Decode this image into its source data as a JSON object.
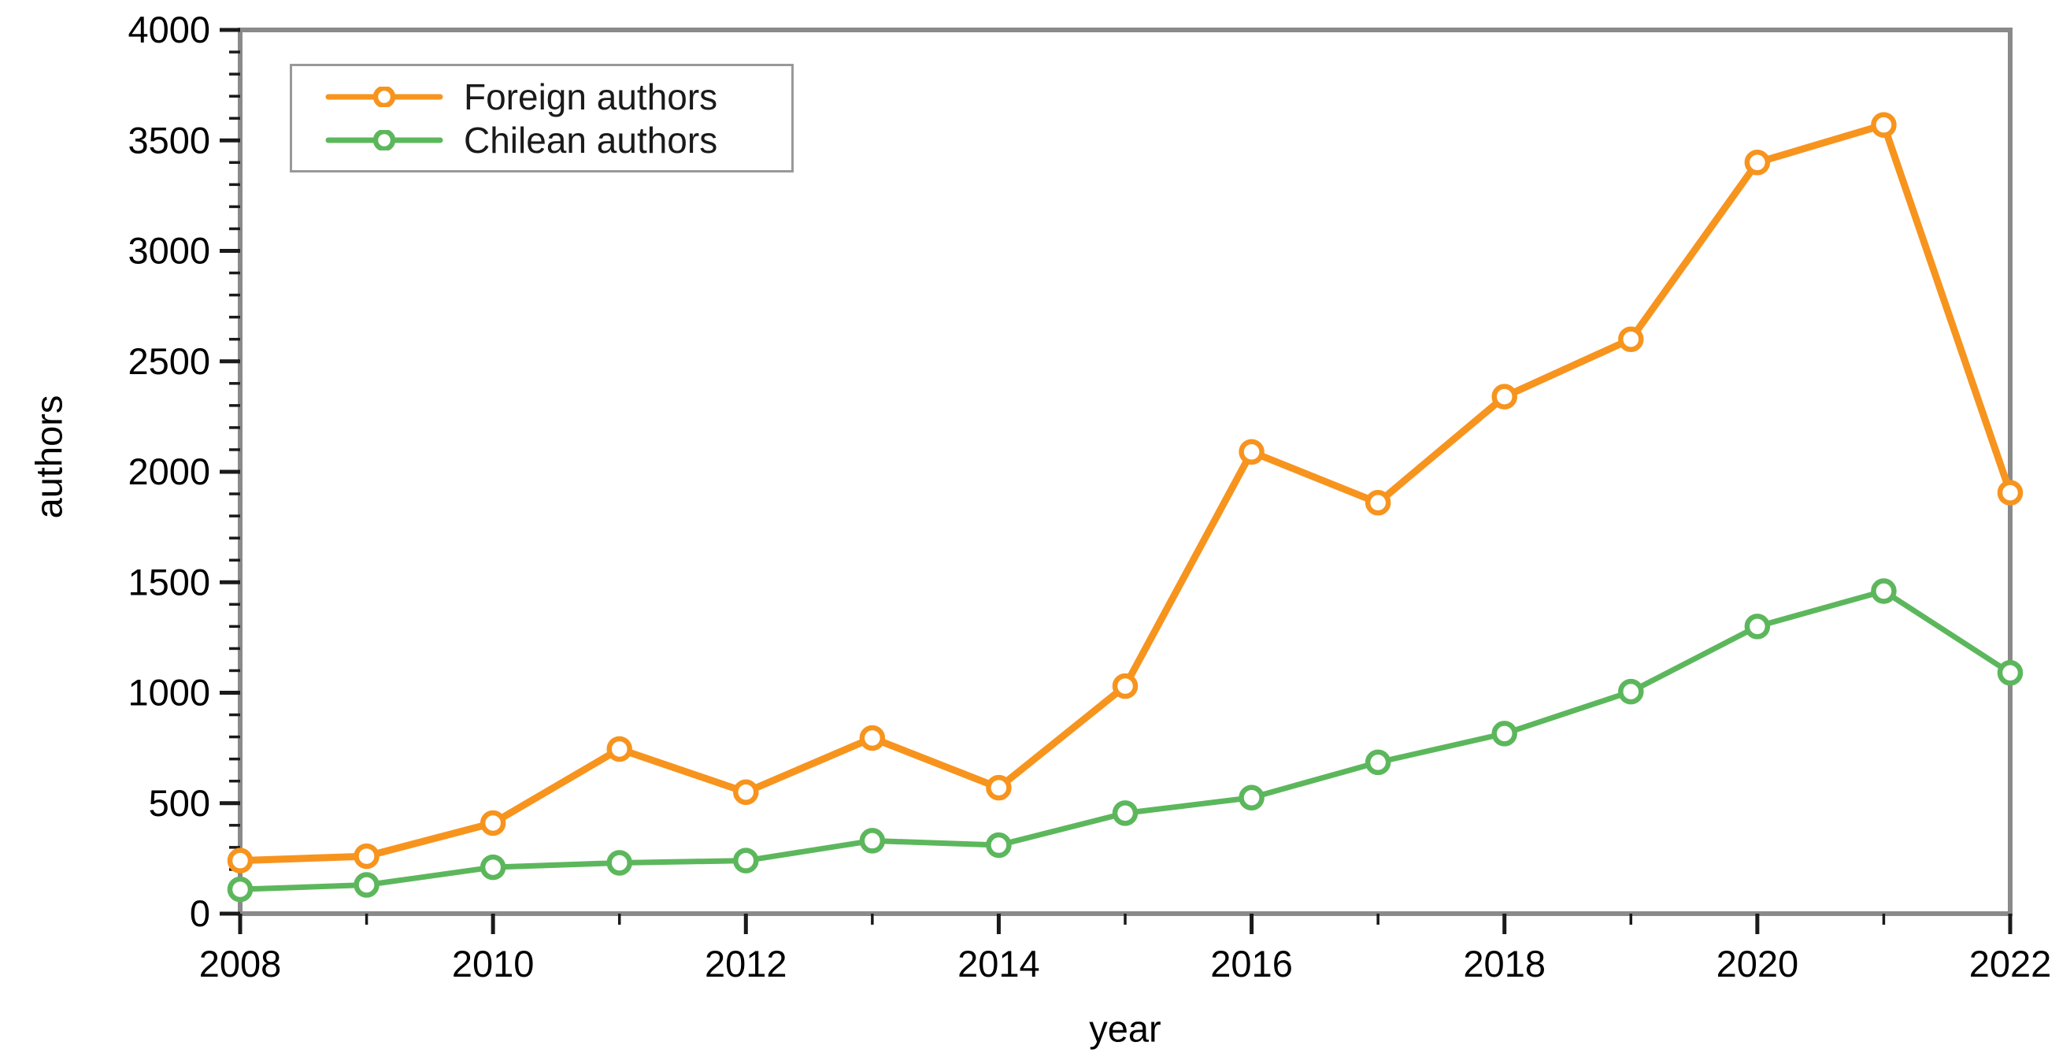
{
  "figure": {
    "background": "#ffffff",
    "frame_color": "#8a8a8a",
    "tick_color": "#1a1a1a",
    "text_color": "#000000",
    "legend_border_color": "#999999"
  },
  "chart_data": {
    "type": "line",
    "title": "",
    "xlabel": "year",
    "ylabel": "authors",
    "x": [
      2008,
      2009,
      2010,
      2011,
      2012,
      2013,
      2014,
      2015,
      2016,
      2017,
      2018,
      2019,
      2020,
      2021,
      2022
    ],
    "series": [
      {
        "name": "Foreign authors",
        "color": "#F7941E",
        "values": [
          240,
          260,
          410,
          745,
          550,
          795,
          570,
          1030,
          2090,
          1860,
          2340,
          2600,
          3400,
          3570,
          1905
        ]
      },
      {
        "name": "Chilean authors",
        "color": "#5CB75C",
        "values": [
          110,
          130,
          210,
          230,
          240,
          330,
          310,
          455,
          525,
          685,
          815,
          1005,
          1300,
          1460,
          1090
        ]
      }
    ],
    "xlim": [
      2008,
      2022
    ],
    "ylim": [
      0,
      4000
    ],
    "x_major_ticks": [
      2008,
      2010,
      2012,
      2014,
      2016,
      2018,
      2020,
      2022
    ],
    "x_minor_step": 1,
    "y_major_step": 500,
    "y_minor_step": 100,
    "grid": false,
    "legend_position": "top-left",
    "marker": "open-circle"
  }
}
